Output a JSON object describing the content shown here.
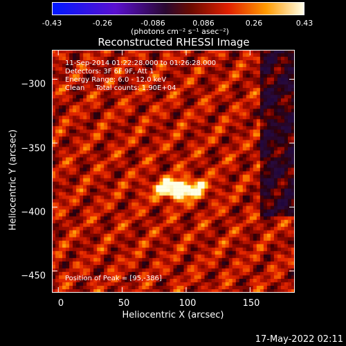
{
  "colorbar": {
    "ticks": [
      "-0.43",
      "-0.26",
      "-0.086",
      "0.086",
      "0.26",
      "0.43"
    ],
    "unit": "(photons cm⁻² s⁻¹ asec⁻²)",
    "min": -0.43,
    "max": 0.43
  },
  "chart_data": {
    "type": "heatmap",
    "title": "Reconstructed RHESSI Image",
    "xlabel": "Heliocentric X (arcsec)",
    "ylabel": "Heliocentric Y (arcsec)",
    "xlim": [
      -5,
      185
    ],
    "ylim": [
      -467,
      -277
    ],
    "xticks": [
      "0",
      "50",
      "100",
      "150"
    ],
    "yticks": [
      "−300",
      "−350",
      "−400",
      "−450"
    ],
    "peak": {
      "x": 95,
      "y": -386
    },
    "colormap": "red-temperature"
  },
  "annotations": {
    "time": "11-Sep-2014 01:22:28.000 to 01:26:28.000",
    "detectors": "Detectors: 3F 6F 9F, Att 1",
    "energy": "Energy Range: 6.0 - 12.0 keV",
    "clean": "Clean     Total counts: 1.90E+04",
    "peak_label": "Position of Peak = [95,-386]"
  },
  "footer": "17-May-2022 02:11"
}
